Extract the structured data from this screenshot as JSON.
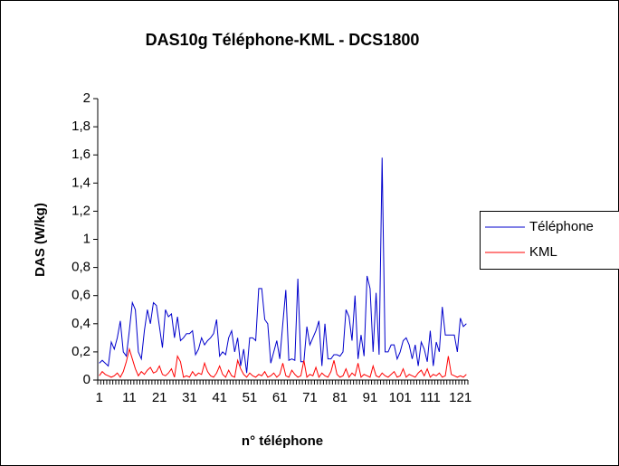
{
  "chart_data": {
    "type": "line",
    "title": "DAS10g Téléphone-KML - DCS1800",
    "xlabel": "n° téléphone",
    "ylabel": "DAS (W/kg)",
    "categories": [
      "1",
      null,
      null,
      null,
      null,
      null,
      null,
      null,
      null,
      null,
      "11",
      null,
      null,
      null,
      null,
      null,
      null,
      null,
      null,
      null,
      "21",
      null,
      null,
      null,
      null,
      null,
      null,
      null,
      null,
      null,
      "31",
      null,
      null,
      null,
      null,
      null,
      null,
      null,
      null,
      null,
      "41",
      null,
      null,
      null,
      null,
      null,
      null,
      null,
      null,
      null,
      "51",
      null,
      null,
      null,
      null,
      null,
      null,
      null,
      null,
      null,
      "61",
      null,
      null,
      null,
      null,
      null,
      null,
      null,
      null,
      null,
      "71",
      null,
      null,
      null,
      null,
      null,
      null,
      null,
      null,
      null,
      "81",
      null,
      null,
      null,
      null,
      null,
      null,
      null,
      null,
      null,
      "91",
      null,
      null,
      null,
      null,
      null,
      null,
      null,
      null,
      null,
      "101",
      null,
      null,
      null,
      null,
      null,
      null,
      null,
      null,
      null,
      "111",
      null,
      null,
      null,
      null,
      null,
      null,
      null,
      null,
      null,
      "121",
      null,
      null
    ],
    "series": [
      {
        "name": "Téléphone",
        "color": "#0000cc",
        "values": [
          0.12,
          0.14,
          0.12,
          0.1,
          0.27,
          0.22,
          0.3,
          0.42,
          0.2,
          0.17,
          0.35,
          0.55,
          0.5,
          0.2,
          0.15,
          0.35,
          0.5,
          0.4,
          0.55,
          0.53,
          0.38,
          0.23,
          0.5,
          0.45,
          0.47,
          0.3,
          0.45,
          0.28,
          0.3,
          0.33,
          0.33,
          0.35,
          0.18,
          0.22,
          0.3,
          0.25,
          0.28,
          0.3,
          0.33,
          0.43,
          0.17,
          0.2,
          0.18,
          0.3,
          0.35,
          0.2,
          0.3,
          0.1,
          0.22,
          0.05,
          0.3,
          0.3,
          0.28,
          0.65,
          0.65,
          0.43,
          0.4,
          0.12,
          0.2,
          0.28,
          0.15,
          0.4,
          0.64,
          0.14,
          0.15,
          0.14,
          0.72,
          0.13,
          0.13,
          0.38,
          0.25,
          0.3,
          0.35,
          0.42,
          0.1,
          0.4,
          0.15,
          0.15,
          0.18,
          0.18,
          0.17,
          0.2,
          0.5,
          0.45,
          0.28,
          0.6,
          0.15,
          0.32,
          0.17,
          0.74,
          0.65,
          0.2,
          0.62,
          0.18,
          1.58,
          0.2,
          0.2,
          0.25,
          0.25,
          0.15,
          0.2,
          0.28,
          0.3,
          0.25,
          0.15,
          0.25,
          0.1,
          0.27,
          0.22,
          0.13,
          0.35,
          0.1,
          0.27,
          0.2,
          0.52,
          0.32,
          0.32,
          0.32,
          0.32,
          0.2,
          0.44,
          0.38,
          0.4
        ]
      },
      {
        "name": "KML",
        "color": "#ff0000",
        "values": [
          0.03,
          0.06,
          0.04,
          0.03,
          0.02,
          0.03,
          0.05,
          0.02,
          0.06,
          0.13,
          0.22,
          0.15,
          0.08,
          0.03,
          0.06,
          0.04,
          0.07,
          0.09,
          0.05,
          0.06,
          0.1,
          0.04,
          0.03,
          0.05,
          0.08,
          0.02,
          0.17,
          0.13,
          0.02,
          0.03,
          0.02,
          0.06,
          0.03,
          0.05,
          0.04,
          0.12,
          0.06,
          0.03,
          0.02,
          0.05,
          0.1,
          0.04,
          0.02,
          0.07,
          0.03,
          0.02,
          0.14,
          0.08,
          0.04,
          0.02,
          0.05,
          0.03,
          0.02,
          0.04,
          0.03,
          0.06,
          0.02,
          0.03,
          0.05,
          0.02,
          0.04,
          0.12,
          0.03,
          0.02,
          0.07,
          0.04,
          0.02,
          0.03,
          0.14,
          0.02,
          0.04,
          0.03,
          0.09,
          0.02,
          0.05,
          0.03,
          0.02,
          0.06,
          0.14,
          0.04,
          0.02,
          0.03,
          0.08,
          0.02,
          0.05,
          0.03,
          0.12,
          0.02,
          0.04,
          0.03,
          0.02,
          0.1,
          0.03,
          0.02,
          0.05,
          0.03,
          0.02,
          0.04,
          0.06,
          0.02,
          0.03,
          0.08,
          0.02,
          0.04,
          0.03,
          0.02,
          0.05,
          0.07,
          0.03,
          0.08,
          0.02,
          0.04,
          0.03,
          0.05,
          0.02,
          0.03,
          0.17,
          0.04,
          0.03,
          0.02,
          0.03,
          0.02,
          0.04
        ]
      }
    ],
    "ylim": [
      0,
      2
    ],
    "yticks": [
      0,
      {
        "value": 0.2,
        "label": "0,2"
      },
      {
        "value": 0.4,
        "label": "0,4"
      },
      {
        "value": 0.6,
        "label": "0,6"
      },
      {
        "value": 0.8,
        "label": "0,8"
      },
      1,
      {
        "value": 1.2,
        "label": "1,2"
      },
      {
        "value": 1.4,
        "label": "1,4"
      },
      {
        "value": 1.6,
        "label": "1,6"
      },
      {
        "value": 1.8,
        "label": "1,8"
      },
      2
    ],
    "grid": false,
    "legend": "right"
  }
}
